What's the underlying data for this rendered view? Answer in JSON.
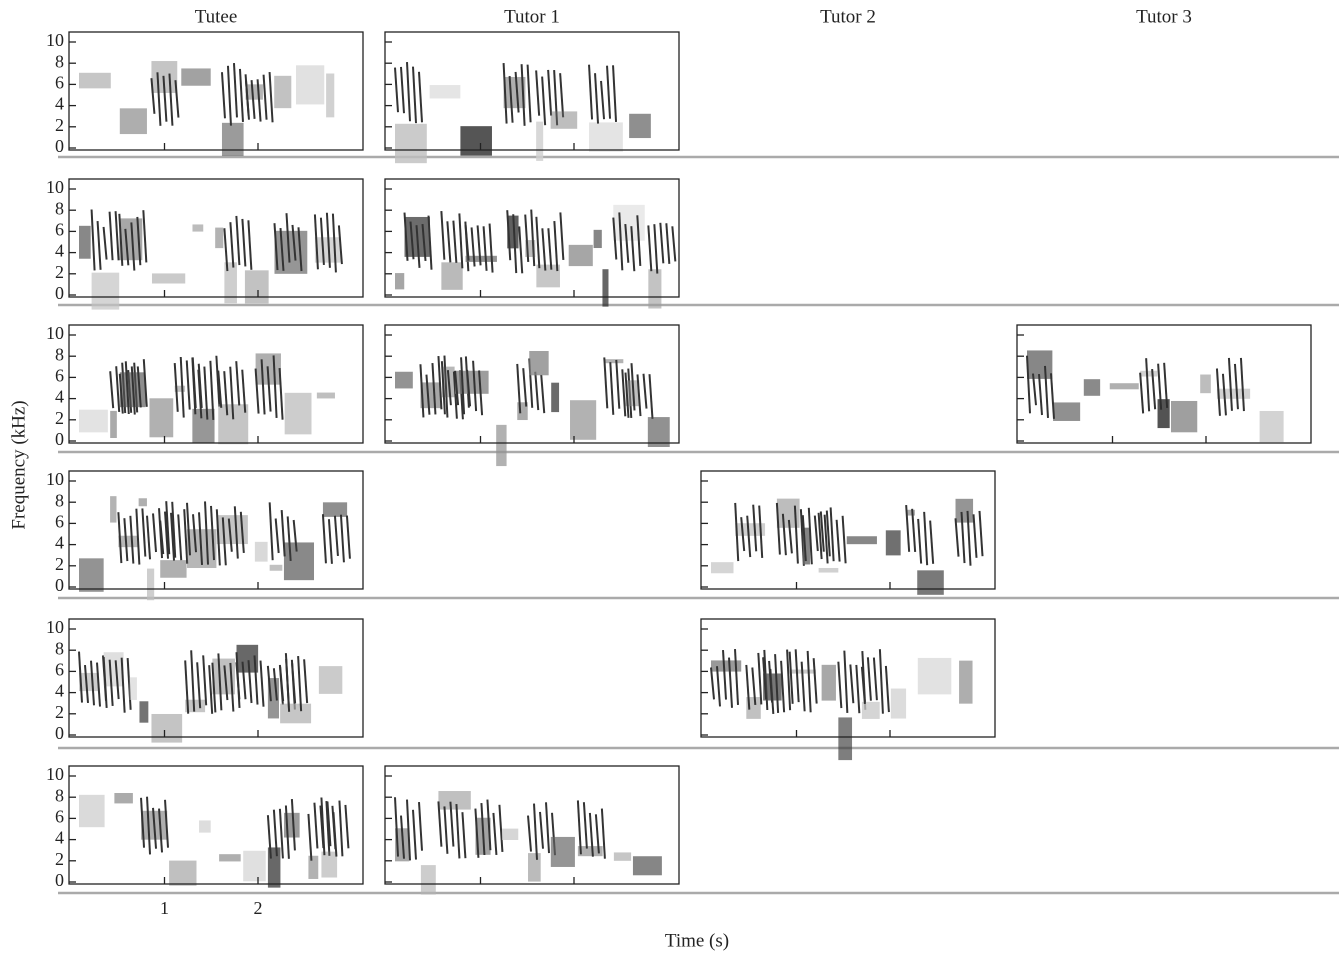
{
  "figure": {
    "columns": [
      "Tutee",
      "Tutor 1",
      "Tutor 2",
      "Tutor 3"
    ],
    "y_label": "Frequency (kHz)",
    "x_label": "Time (s)",
    "yticks": [
      0,
      2,
      4,
      6,
      8,
      10
    ],
    "xticks": [
      1,
      2
    ]
  }
}
